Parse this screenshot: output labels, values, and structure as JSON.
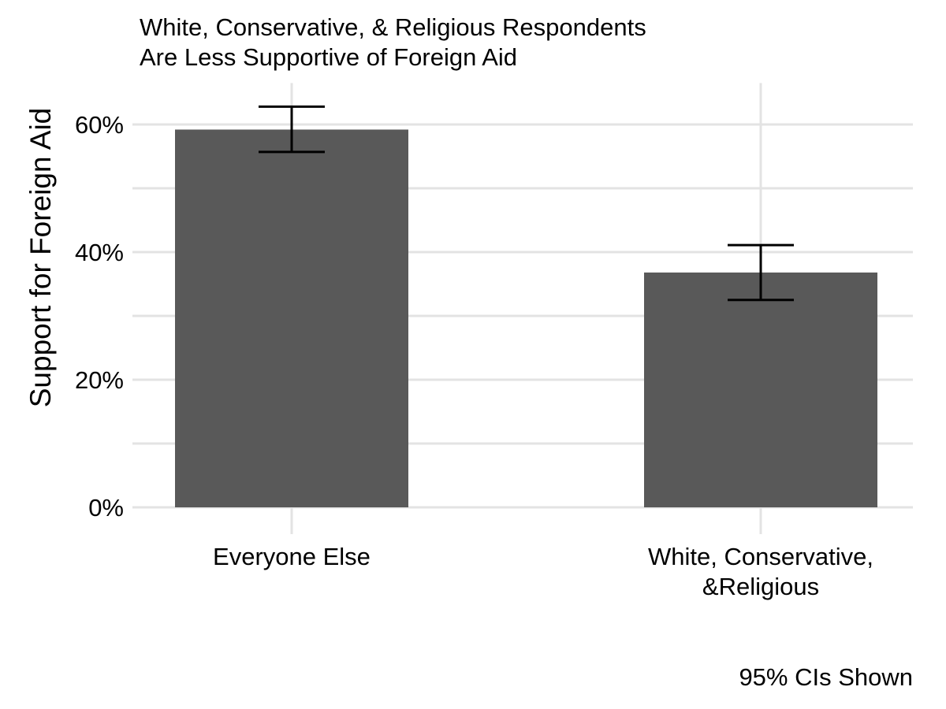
{
  "chart_data": {
    "type": "bar",
    "title_lines": [
      "White, Conservative, & Religious Respondents",
      "Are Less Supportive of Foreign Aid"
    ],
    "xlabel": "",
    "ylabel": "Support for Foreign Aid",
    "caption": "95% CIs Shown",
    "categories": [
      [
        "Everyone Else"
      ],
      [
        "White, Conservative,",
        "&Religious"
      ]
    ],
    "values": [
      0.592,
      0.368
    ],
    "ci_lower": [
      0.557,
      0.325
    ],
    "ci_upper": [
      0.628,
      0.411
    ],
    "ylim": [
      0,
      0.66
    ],
    "yticks": [
      0,
      0.2,
      0.4,
      0.6
    ],
    "ytick_labels": [
      "0%",
      "20%",
      "40%",
      "60%"
    ],
    "grid": true,
    "legend": "none",
    "colors": {
      "bar": "#595959",
      "errorbar": "#000000",
      "grid": "#e3e3e3",
      "text": "#000000"
    }
  }
}
